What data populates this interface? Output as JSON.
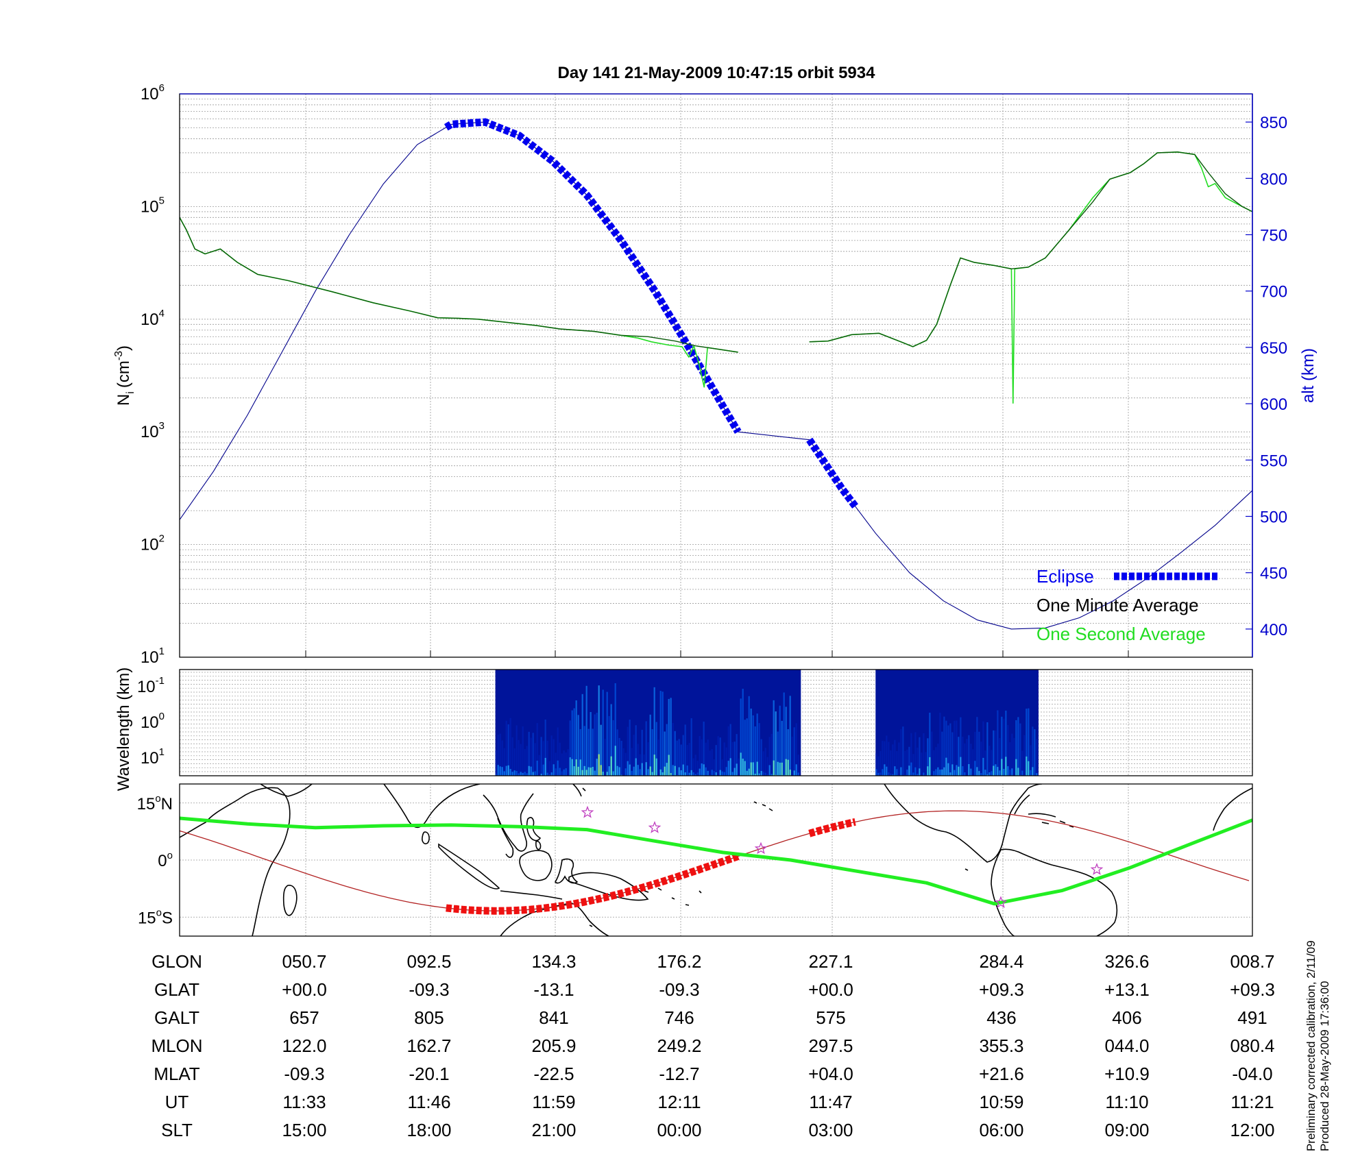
{
  "title": "Day 141  21-May-2009 10:47:15   orbit 5934",
  "colors": {
    "eclipse": "#0000ee",
    "minute": "#0a5a0a",
    "second": "#22dd22",
    "alt": "#00008b",
    "track": "#22ee22",
    "path": "#b22222",
    "eclipse_map": "#ee1111",
    "star": "#c040c0"
  },
  "chart_data": [
    {
      "type": "line",
      "title": "Day 141  21-May-2009 10:47:15   orbit 5934",
      "ylabel": "N_i (cm^-3)",
      "ylabel_base": "N",
      "ylabel_sub": "i",
      "ylabel_unit": "(cm",
      "ylabel_exp": "-3",
      "ylabel_close": ")",
      "yscale": "log",
      "ylim": [
        10,
        1000000
      ],
      "y_ticks": [
        {
          "base": "10",
          "exp": "1"
        },
        {
          "base": "10",
          "exp": "2"
        },
        {
          "base": "10",
          "exp": "3"
        },
        {
          "base": "10",
          "exp": "4"
        },
        {
          "base": "10",
          "exp": "5"
        },
        {
          "base": "10",
          "exp": "6"
        }
      ],
      "y2label": "alt (km)",
      "y2lim": [
        375,
        875
      ],
      "y2_ticks": [
        "400",
        "450",
        "500",
        "550",
        "600",
        "650",
        "700",
        "750",
        "800",
        "850"
      ],
      "x_ticks_slt": [
        "15:00",
        "18:00",
        "21:00",
        "00:00",
        "03:00",
        "06:00",
        "09:00",
        "12:00"
      ],
      "legend": {
        "placement": "bottom-right",
        "eclipse": "Eclipse",
        "minute": "One Minute Average",
        "second": "One Second Average"
      },
      "grid": true,
      "series": [
        {
          "name": "One Minute Average",
          "segments": [
            [
              [
                0,
                80000
              ],
              [
                0.2,
                62000
              ],
              [
                0.45,
                42000
              ],
              [
                0.75,
                38000
              ],
              [
                1.2,
                42000
              ],
              [
                1.7,
                32000
              ],
              [
                2.3,
                25000
              ],
              [
                3.2,
                22000
              ],
              [
                4.5,
                17500
              ],
              [
                5.7,
                14000
              ],
              [
                6.8,
                11800
              ],
              [
                7.6,
                10300
              ],
              [
                8.2,
                10200
              ],
              [
                8.8,
                10000
              ],
              [
                9.6,
                9400
              ],
              [
                10.5,
                8800
              ],
              [
                11.2,
                8200
              ],
              [
                12.2,
                7800
              ],
              [
                13.0,
                7200
              ],
              [
                13.8,
                7000
              ],
              [
                14.6,
                6400
              ],
              [
                15.2,
                5800
              ],
              [
                15.9,
                5400
              ],
              [
                16.45,
                5100
              ]
            ],
            [
              [
                18.55,
                6300
              ],
              [
                19.1,
                6400
              ],
              [
                19.8,
                7300
              ],
              [
                20.6,
                7500
              ],
              [
                21.3,
                6200
              ],
              [
                21.6,
                5700
              ],
              [
                22.0,
                6500
              ],
              [
                22.3,
                9000
              ],
              [
                22.7,
                20000
              ],
              [
                23.0,
                35000
              ],
              [
                23.4,
                32000
              ],
              [
                24.0,
                30000
              ],
              [
                24.5,
                28000
              ],
              [
                25.0,
                29000
              ],
              [
                25.5,
                35000
              ],
              [
                26.2,
                62000
              ],
              [
                26.9,
                110000
              ],
              [
                27.4,
                175000
              ],
              [
                28.0,
                200000
              ],
              [
                28.4,
                240000
              ],
              [
                28.8,
                300000
              ],
              [
                29.4,
                305000
              ],
              [
                29.9,
                290000
              ],
              [
                30.3,
                200000
              ],
              [
                30.8,
                130000
              ],
              [
                31.3,
                100000
              ],
              [
                31.6,
                90000
              ]
            ]
          ]
        },
        {
          "name": "One Second Average",
          "segments": [
            [
              [
                0,
                80000
              ],
              [
                0.2,
                62000
              ],
              [
                0.45,
                42000
              ],
              [
                0.75,
                38000
              ],
              [
                1.2,
                42000
              ],
              [
                1.7,
                32000
              ],
              [
                2.3,
                25000
              ],
              [
                3.2,
                22000
              ],
              [
                4.5,
                17500
              ],
              [
                5.7,
                14000
              ],
              [
                6.8,
                11800
              ],
              [
                7.6,
                10300
              ],
              [
                8.2,
                10200
              ],
              [
                8.8,
                10000
              ],
              [
                9.6,
                9400
              ],
              [
                10.5,
                8800
              ],
              [
                11.2,
                8200
              ],
              [
                12.2,
                7800
              ],
              [
                13.0,
                7200
              ],
              [
                13.5,
                6800
              ],
              [
                13.9,
                6300
              ],
              [
                14.4,
                5900
              ],
              [
                14.8,
                5700
              ],
              [
                15.0,
                4600
              ],
              [
                15.15,
                5800
              ],
              [
                15.3,
                4000
              ],
              [
                15.45,
                2500
              ],
              [
                15.55,
                5600
              ],
              [
                15.9,
                5400
              ],
              [
                16.45,
                5100
              ]
            ],
            [
              [
                18.55,
                6300
              ],
              [
                19.1,
                6400
              ],
              [
                19.8,
                7300
              ],
              [
                20.6,
                7500
              ],
              [
                21.3,
                6200
              ],
              [
                21.6,
                5700
              ],
              [
                22.0,
                6500
              ],
              [
                22.3,
                9000
              ],
              [
                22.7,
                20000
              ],
              [
                23.0,
                35000
              ],
              [
                23.4,
                32000
              ],
              [
                24.0,
                30000
              ],
              [
                24.5,
                28000
              ],
              [
                24.55,
                1800
              ],
              [
                24.6,
                28000
              ],
              [
                25.0,
                29000
              ],
              [
                25.5,
                35000
              ],
              [
                26.2,
                62000
              ],
              [
                26.9,
                120000
              ],
              [
                27.4,
                175000
              ],
              [
                28.0,
                200000
              ],
              [
                28.4,
                240000
              ],
              [
                28.8,
                300000
              ],
              [
                29.4,
                305000
              ],
              [
                29.9,
                290000
              ],
              [
                30.1,
                220000
              ],
              [
                30.3,
                150000
              ],
              [
                30.5,
                160000
              ],
              [
                30.8,
                120000
              ],
              [
                31.3,
                100000
              ],
              [
                31.6,
                90000
              ]
            ]
          ]
        },
        {
          "name": "alt (km)",
          "axis": "right",
          "points": [
            [
              0,
              497
            ],
            [
              1,
              540
            ],
            [
              2,
              590
            ],
            [
              3,
              645
            ],
            [
              4,
              700
            ],
            [
              5,
              750
            ],
            [
              6,
              795
            ],
            [
              7,
              830
            ],
            [
              8,
              848
            ],
            [
              9,
              850
            ],
            [
              10,
              838
            ],
            [
              11,
              815
            ],
            [
              12,
              785
            ],
            [
              13,
              745
            ],
            [
              14,
              700
            ],
            [
              15,
              650
            ],
            [
              16,
              598
            ],
            [
              16.45,
              575
            ],
            [
              18.55,
              568
            ],
            [
              19.5,
              525
            ],
            [
              20.5,
              485
            ],
            [
              21.5,
              450
            ],
            [
              22.5,
              425
            ],
            [
              23.5,
              408
            ],
            [
              24.5,
              400
            ],
            [
              25.5,
              401
            ],
            [
              26.5,
              410
            ],
            [
              27.5,
              425
            ],
            [
              28.5,
              445
            ],
            [
              29.5,
              468
            ],
            [
              30.5,
              492
            ],
            [
              31.6,
              523
            ]
          ],
          "eclipse_ranges": [
            [
              7.85,
              16.45
            ],
            [
              18.55,
              19.9
            ]
          ]
        }
      ]
    },
    {
      "type": "heatmap",
      "ylabel": "Wavelength (km)",
      "y_ticks": [
        {
          "base": "10",
          "exp": "-1"
        },
        {
          "base": "10",
          "exp": "0"
        },
        {
          "base": "10",
          "exp": "1"
        }
      ],
      "data_ranges": [
        [
          9.3,
          18.3
        ],
        [
          20.5,
          25.3
        ]
      ]
    },
    {
      "type": "map",
      "y_ticks": [
        {
          "num": "15",
          "dir": "N"
        },
        {
          "num": "0",
          "dir": ""
        },
        {
          "num": "15",
          "dir": "S"
        }
      ],
      "ylim": [
        -20,
        20
      ]
    }
  ],
  "table": {
    "row_labels": [
      "GLON",
      "GLAT",
      "GALT",
      "MLON",
      "MLAT",
      "UT",
      "SLT"
    ],
    "columns": [
      [
        "050.7",
        "+00.0",
        "657",
        "122.0",
        "-09.3",
        "11:33",
        "15:00"
      ],
      [
        "092.5",
        "-09.3",
        "805",
        "162.7",
        "-20.1",
        "11:46",
        "18:00"
      ],
      [
        "134.3",
        "-13.1",
        "841",
        "205.9",
        "-22.5",
        "11:59",
        "21:00"
      ],
      [
        "176.2",
        "-09.3",
        "746",
        "249.2",
        "-12.7",
        "12:11",
        "00:00"
      ],
      [
        "227.1",
        "+00.0",
        "575",
        "297.5",
        "+04.0",
        "11:47",
        "03:00"
      ],
      [
        "284.4",
        "+09.3",
        "436",
        "355.3",
        "+21.6",
        "10:59",
        "06:00"
      ],
      [
        "326.6",
        "+13.1",
        "406",
        "044.0",
        "+10.9",
        "11:10",
        "09:00"
      ],
      [
        "008.7",
        "+09.3",
        "491",
        "080.4",
        "-04.0",
        "11:21",
        "12:00"
      ]
    ]
  },
  "footnote": [
    "Preliminary corrected calibration, 2/11/09",
    "Produced 28-May-2009 17:36:00"
  ]
}
